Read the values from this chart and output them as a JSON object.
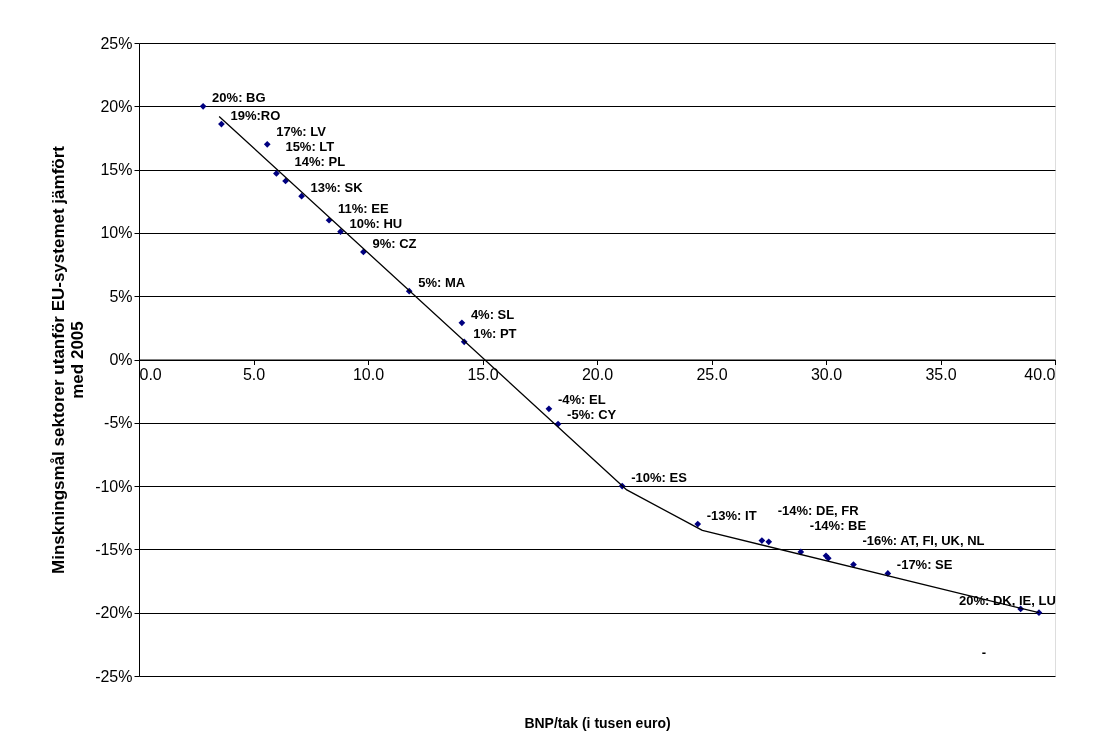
{
  "chart_data": {
    "type": "scatter",
    "xlabel": "BNP/tak (i tusen euro)",
    "ylabel": "Minskningsmål sektorer utanför EU-systemet jämfört med 2005",
    "xlim": [
      0,
      40
    ],
    "xticks": [
      {
        "value": 0,
        "label": "0.0"
      },
      {
        "value": 5,
        "label": "5.0"
      },
      {
        "value": 10,
        "label": "10.0"
      },
      {
        "value": 15,
        "label": "15.0"
      },
      {
        "value": 20,
        "label": "20.0"
      },
      {
        "value": 25,
        "label": "25.0"
      },
      {
        "value": 30,
        "label": "30.0"
      },
      {
        "value": 35,
        "label": "35.0"
      },
      {
        "value": 40,
        "label": "40.0"
      }
    ],
    "ylim": [
      -25,
      25
    ],
    "yticks": [
      {
        "value": -25,
        "label": "-25%"
      },
      {
        "value": -20,
        "label": "-20%"
      },
      {
        "value": -15,
        "label": "-15%"
      },
      {
        "value": -10,
        "label": "-10%"
      },
      {
        "value": -5,
        "label": "-5%"
      },
      {
        "value": 0,
        "label": "0%"
      },
      {
        "value": 5,
        "label": "5%"
      },
      {
        "value": 10,
        "label": "10%"
      },
      {
        "value": 15,
        "label": "15%"
      },
      {
        "value": 20,
        "label": "20%"
      },
      {
        "value": 25,
        "label": "25%"
      }
    ],
    "grid": "y",
    "marker": "diamond",
    "series": [
      {
        "color": "#000080",
        "x": [
          2.8,
          3.6,
          5.6,
          6.0,
          6.4,
          7.1,
          8.3,
          8.8,
          9.8,
          11.8,
          14.1,
          14.2,
          17.9,
          18.3,
          21.1,
          24.4,
          27.2,
          27.5,
          28.9,
          30.0,
          30.1,
          31.2,
          32.7,
          38.5,
          39.3
        ],
        "values": [
          20.0,
          18.6,
          17.0,
          14.7,
          14.1,
          12.9,
          11.0,
          10.1,
          8.5,
          5.4,
          2.9,
          1.4,
          -3.9,
          -5.1,
          -10.0,
          -13.0,
          -14.3,
          -14.4,
          -15.2,
          -15.5,
          -15.7,
          -16.2,
          -16.9,
          -19.7,
          -20.0
        ]
      },
      {
        "type": "line",
        "color": "#000000",
        "marker": "none",
        "x": [
          3.5,
          21.3,
          24.6,
          39.3
        ],
        "values": [
          19.2,
          -10.3,
          -13.5,
          -20.0
        ]
      }
    ],
    "annotations": [
      {
        "text": "20%: BG",
        "x": 2.8,
        "y": 20.0
      },
      {
        "text": "19%:RO",
        "x": 3.6,
        "y": 18.6
      },
      {
        "text": "17%: LV",
        "x": 5.6,
        "y": 17.0
      },
      {
        "text": "15%:  LT",
        "x": 6.0,
        "y": 14.7
      },
      {
        "text": "14%: PL",
        "x": 6.4,
        "y": 14.1
      },
      {
        "text": "13%: SK",
        "x": 7.1,
        "y": 12.9
      },
      {
        "text": "11%: EE",
        "x": 8.3,
        "y": 11.0
      },
      {
        "text": "10%: HU",
        "x": 8.8,
        "y": 10.1
      },
      {
        "text": "9%: CZ",
        "x": 9.8,
        "y": 8.5
      },
      {
        "text": "5%: MA",
        "x": 11.8,
        "y": 5.4
      },
      {
        "text": "4%: SL",
        "x": 14.1,
        "y": 2.9
      },
      {
        "text": "1%:  PT",
        "x": 14.2,
        "y": 1.4
      },
      {
        "text": "-4%: EL",
        "x": 17.9,
        "y": -3.9
      },
      {
        "text": "-5%: CY",
        "x": 18.3,
        "y": -5.1
      },
      {
        "text": "-10%: ES",
        "x": 21.1,
        "y": -10.0
      },
      {
        "text": "-13%: IT",
        "x": 24.4,
        "y": -13.0
      },
      {
        "text": "-14%: DE, FR",
        "x": 27.5,
        "y": -14.4
      },
      {
        "text": "-14%: BE",
        "x": 28.9,
        "y": -15.2
      },
      {
        "text": "-16%: AT, FI, UK, NL",
        "x": 31.2,
        "y": -16.2
      },
      {
        "text": "-17%: SE",
        "x": 32.7,
        "y": -16.9
      },
      {
        "text": "20%: DK, IE, LU",
        "x": 38.5,
        "y": -19.7
      },
      "-"
    ]
  }
}
